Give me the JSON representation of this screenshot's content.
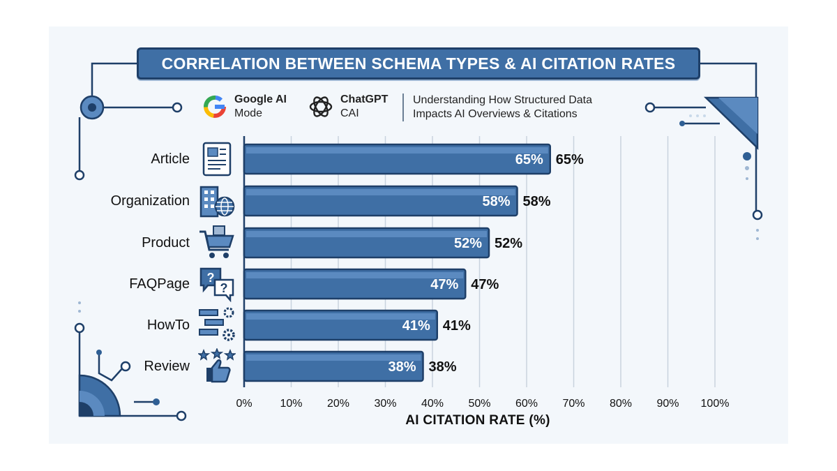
{
  "header": {
    "title": "CORRELATION BETWEEN SCHEMA TYPES & AI CITATION RATES",
    "brands": [
      {
        "name": "Google AI",
        "sub": "Mode",
        "icon": "google-g-icon"
      },
      {
        "name": "ChatGPT",
        "sub": "CAI",
        "icon": "openai-knot-icon"
      }
    ],
    "subtitle_line1": "Understanding How Structured Data",
    "subtitle_line2": "Impacts AI Overviews & Citations"
  },
  "colors": {
    "bar": "#3f6fa5",
    "bar_light": "#5b8ac0",
    "bar_border": "#1e3f68",
    "accent": "#2f5f94",
    "grid": "#c9d3de"
  },
  "icons": [
    "article-document-icon",
    "organization-building-globe-icon",
    "product-cart-icon",
    "faq-speech-bubbles-icon",
    "howto-steps-gears-icon",
    "review-stars-thumbs-up-icon"
  ],
  "chart_data": {
    "type": "bar",
    "orientation": "horizontal",
    "title": "CORRELATION BETWEEN SCHEMA TYPES & AI CITATION RATES",
    "categories": [
      "Article",
      "Organization",
      "Product",
      "FAQPage",
      "HowTo",
      "Review"
    ],
    "values": [
      65,
      58,
      52,
      47,
      41,
      38
    ],
    "value_labels": [
      "65%",
      "58%",
      "52%",
      "47%",
      "41%",
      "38%"
    ],
    "xlabel": "AI CITATION RATE (%)",
    "ylabel": "",
    "xlim": [
      0,
      100
    ],
    "x_ticks": [
      "0%",
      "10%",
      "20%",
      "30%",
      "40%",
      "50%",
      "60%",
      "70%",
      "80%",
      "90%",
      "100%"
    ],
    "grid": true,
    "legend": "none"
  }
}
